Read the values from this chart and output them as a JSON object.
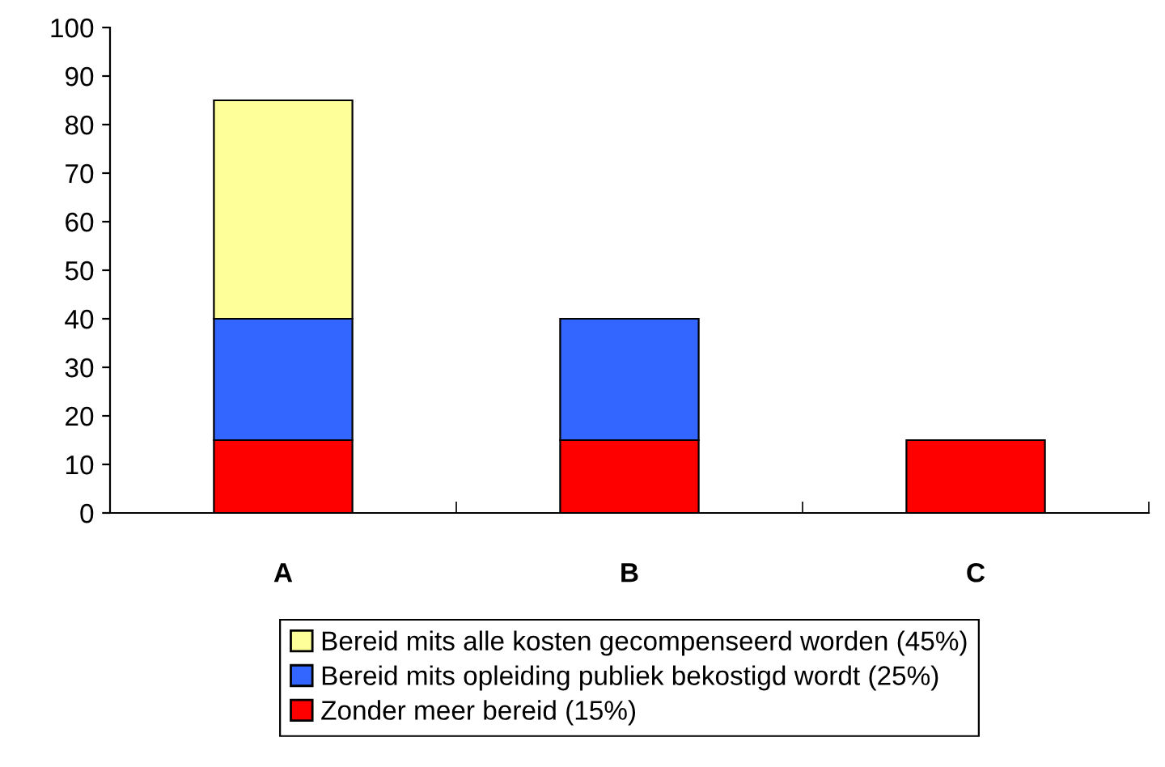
{
  "chart_data": {
    "type": "bar",
    "stacked": true,
    "categories": [
      "A",
      "B",
      "C"
    ],
    "series": [
      {
        "name": "Zonder meer bereid (15%)",
        "color": "#ff0000",
        "values": [
          15,
          15,
          15
        ]
      },
      {
        "name": "Bereid mits opleiding publiek bekostigd wordt (25%)",
        "color": "#3366ff",
        "values": [
          25,
          25,
          null
        ]
      },
      {
        "name": "Bereid mits alle kosten gecompenseerd worden (45%)",
        "color": "#ffff99",
        "values": [
          45,
          null,
          null
        ]
      }
    ],
    "ylim": [
      0,
      100
    ],
    "yticks": [
      0,
      10,
      20,
      30,
      40,
      50,
      60,
      70,
      80,
      90,
      100
    ],
    "grid": false,
    "legend": "bottom"
  }
}
